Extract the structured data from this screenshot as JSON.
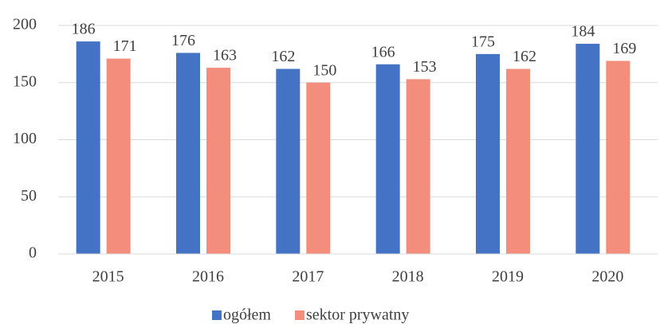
{
  "chart_data": {
    "type": "bar",
    "categories": [
      "2015",
      "2016",
      "2017",
      "2018",
      "2019",
      "2020"
    ],
    "series": [
      {
        "name": "ogółem",
        "color": "#4472c4",
        "values": [
          186,
          176,
          162,
          166,
          175,
          184
        ]
      },
      {
        "name": "sektor prywatny",
        "color": "#f28e7b",
        "values": [
          171,
          163,
          150,
          153,
          162,
          169
        ]
      }
    ],
    "ylim": [
      0,
      200
    ],
    "yticks": [
      0,
      50,
      100,
      150,
      200
    ],
    "grid": true,
    "legend": "bottom"
  }
}
